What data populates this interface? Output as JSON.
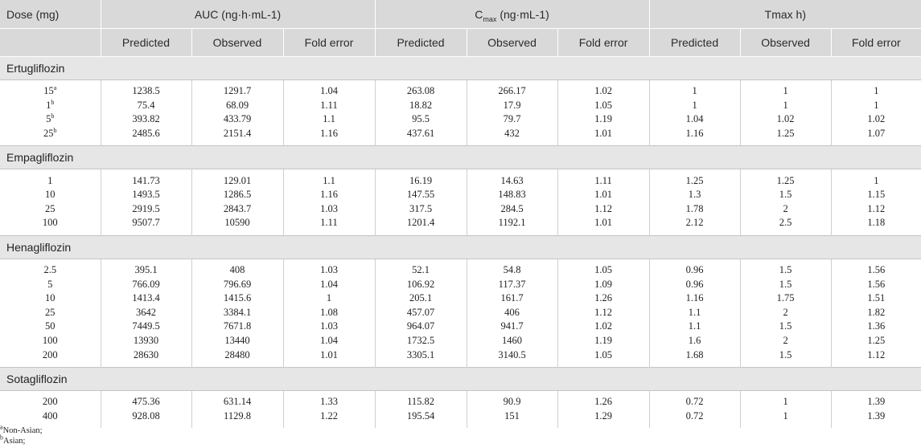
{
  "header": {
    "dose": "Dose (mg)",
    "auc": "AUC (ng·h·mL-1)",
    "cmax_prefix": "C",
    "cmax_sub": "max",
    "cmax_suffix": " (ng·mL-1)",
    "tmax": "Tmax h)",
    "sub_columns": [
      "Predicted",
      "Observed",
      "Fold error",
      "Predicted",
      "Observed",
      "Fold error",
      "Predicted",
      "Observed",
      "Fold error"
    ]
  },
  "groups": [
    {
      "name": "Ertugliflozin",
      "rows": [
        {
          "dose": "15",
          "dose_sup": "a",
          "values": [
            "1238.5",
            "1291.7",
            "1.04",
            "263.08",
            "266.17",
            "1.02",
            "1",
            "1",
            "1"
          ]
        },
        {
          "dose": "1",
          "dose_sup": "b",
          "values": [
            "75.4",
            "68.09",
            "1.11",
            "18.82",
            "17.9",
            "1.05",
            "1",
            "1",
            "1"
          ]
        },
        {
          "dose": "5",
          "dose_sup": "b",
          "values": [
            "393.82",
            "433.79",
            "1.1",
            "95.5",
            "79.7",
            "1.19",
            "1.04",
            "1.02",
            "1.02"
          ]
        },
        {
          "dose": "25",
          "dose_sup": "b",
          "values": [
            "2485.6",
            "2151.4",
            "1.16",
            "437.61",
            "432",
            "1.01",
            "1.16",
            "1.25",
            "1.07"
          ]
        }
      ]
    },
    {
      "name": "Empagliflozin",
      "rows": [
        {
          "dose": "1",
          "dose_sup": "",
          "values": [
            "141.73",
            "129.01",
            "1.1",
            "16.19",
            "14.63",
            "1.11",
            "1.25",
            "1.25",
            "1"
          ]
        },
        {
          "dose": "10",
          "dose_sup": "",
          "values": [
            "1493.5",
            "1286.5",
            "1.16",
            "147.55",
            "148.83",
            "1.01",
            "1.3",
            "1.5",
            "1.15"
          ]
        },
        {
          "dose": "25",
          "dose_sup": "",
          "values": [
            "2919.5",
            "2843.7",
            "1.03",
            "317.5",
            "284.5",
            "1.12",
            "1.78",
            "2",
            "1.12"
          ]
        },
        {
          "dose": "100",
          "dose_sup": "",
          "values": [
            "9507.7",
            "10590",
            "1.11",
            "1201.4",
            "1192.1",
            "1.01",
            "2.12",
            "2.5",
            "1.18"
          ]
        }
      ]
    },
    {
      "name": "Henagliflozin",
      "rows": [
        {
          "dose": "2.5",
          "dose_sup": "",
          "values": [
            "395.1",
            "408",
            "1.03",
            "52.1",
            "54.8",
            "1.05",
            "0.96",
            "1.5",
            "1.56"
          ]
        },
        {
          "dose": "5",
          "dose_sup": "",
          "values": [
            "766.09",
            "796.69",
            "1.04",
            "106.92",
            "117.37",
            "1.09",
            "0.96",
            "1.5",
            "1.56"
          ]
        },
        {
          "dose": "10",
          "dose_sup": "",
          "values": [
            "1413.4",
            "1415.6",
            "1",
            "205.1",
            "161.7",
            "1.26",
            "1.16",
            "1.75",
            "1.51"
          ]
        },
        {
          "dose": "25",
          "dose_sup": "",
          "values": [
            "3642",
            "3384.1",
            "1.08",
            "457.07",
            "406",
            "1.12",
            "1.1",
            "2",
            "1.82"
          ]
        },
        {
          "dose": "50",
          "dose_sup": "",
          "values": [
            "7449.5",
            "7671.8",
            "1.03",
            "964.07",
            "941.7",
            "1.02",
            "1.1",
            "1.5",
            "1.36"
          ]
        },
        {
          "dose": "100",
          "dose_sup": "",
          "values": [
            "13930",
            "13440",
            "1.04",
            "1732.5",
            "1460",
            "1.19",
            "1.6",
            "2",
            "1.25"
          ]
        },
        {
          "dose": "200",
          "dose_sup": "",
          "values": [
            "28630",
            "28480",
            "1.01",
            "3305.1",
            "3140.5",
            "1.05",
            "1.68",
            "1.5",
            "1.12"
          ]
        }
      ]
    },
    {
      "name": "Sotagliflozin",
      "rows": [
        {
          "dose": "200",
          "dose_sup": "",
          "values": [
            "475.36",
            "631.14",
            "1.33",
            "115.82",
            "90.9",
            "1.26",
            "0.72",
            "1",
            "1.39"
          ]
        },
        {
          "dose": "400",
          "dose_sup": "",
          "values": [
            "928.08",
            "1129.8",
            "1.22",
            "195.54",
            "151",
            "1.29",
            "0.72",
            "1",
            "1.39"
          ]
        }
      ]
    }
  ],
  "footnotes": [
    {
      "mark": "a",
      "text": "Non-Asian;"
    },
    {
      "mark": "b",
      "text": "Asian;"
    }
  ]
}
